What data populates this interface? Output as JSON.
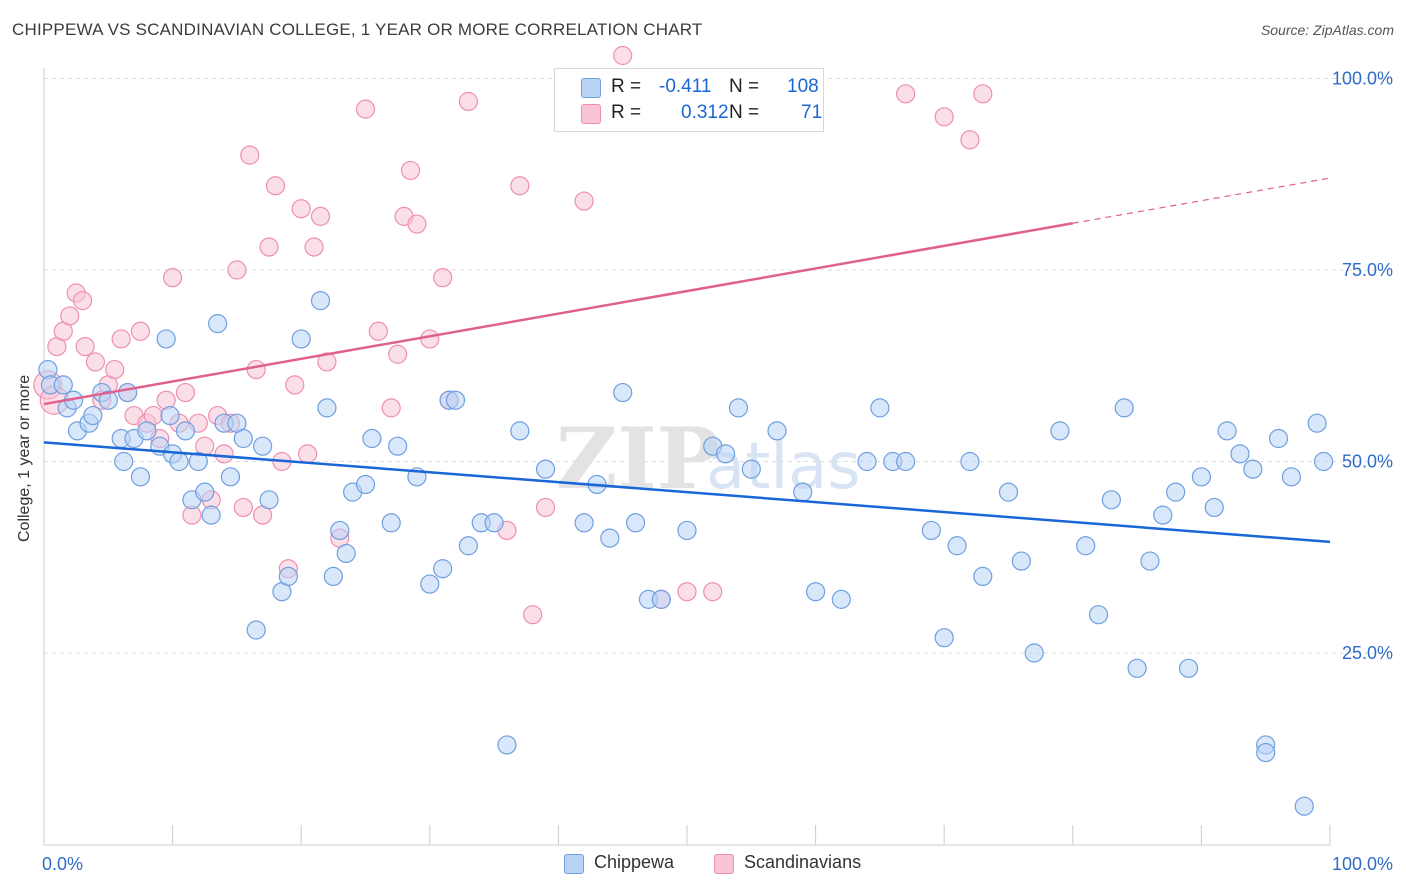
{
  "header": {
    "title": "CHIPPEWA VS SCANDINAVIAN COLLEGE, 1 YEAR OR MORE CORRELATION CHART",
    "source": "Source: ZipAtlas.com"
  },
  "legend": {
    "rows": [
      {
        "r_label": "R =",
        "r_value": "-0.411",
        "n_label": "N =",
        "n_value": "108"
      },
      {
        "r_label": "R =",
        "r_value": "0.312",
        "n_label": "N =",
        "n_value": "71"
      }
    ]
  },
  "watermark": {
    "zip": "ZIP",
    "atlas": "atlas"
  },
  "colors": {
    "blue_fill": "#b9d3f5",
    "blue_stroke": "#6f9fe0",
    "blue_line": "#1a66d6",
    "pink_fill": "#f8c4d6",
    "pink_stroke": "#ee8fb0",
    "pink_line": "#e0608d",
    "tick_label": "#2f6cc8",
    "grid": "#dddddd"
  },
  "chart_data": {
    "type": "scatter",
    "title": "CHIPPEWA VS SCANDINAVIAN COLLEGE, 1 YEAR OR MORE CORRELATION CHART",
    "xlabel": "",
    "ylabel": "College, 1 year or more",
    "xlim": [
      0,
      100
    ],
    "ylim": [
      0,
      100
    ],
    "x_tick_labels": [
      "0.0%",
      "100.0%"
    ],
    "y_ticks": [
      25,
      50,
      75,
      100
    ],
    "y_tick_labels": [
      "25.0%",
      "50.0%",
      "75.0%",
      "100.0%"
    ],
    "grid": true,
    "legend_position": "top-center",
    "series": [
      {
        "name": "Chippewa",
        "r": -0.411,
        "n": 108,
        "trend": {
          "x": [
            0,
            100
          ],
          "y": [
            52.5,
            39.5
          ],
          "dashed_from": null
        },
        "points": [
          [
            0.3,
            62
          ],
          [
            0.5,
            60
          ],
          [
            1.5,
            60
          ],
          [
            1.8,
            57
          ],
          [
            2.3,
            58
          ],
          [
            2.6,
            54
          ],
          [
            3.5,
            55
          ],
          [
            3.8,
            56
          ],
          [
            4.5,
            59
          ],
          [
            5,
            58
          ],
          [
            6,
            53
          ],
          [
            6.2,
            50
          ],
          [
            6.5,
            59
          ],
          [
            7,
            53
          ],
          [
            7.5,
            48
          ],
          [
            8,
            54
          ],
          [
            9,
            52
          ],
          [
            9.5,
            66
          ],
          [
            9.8,
            56
          ],
          [
            10,
            51
          ],
          [
            10.5,
            50
          ],
          [
            11,
            54
          ],
          [
            11.5,
            45
          ],
          [
            12,
            50
          ],
          [
            12.5,
            46
          ],
          [
            13,
            43
          ],
          [
            13.5,
            68
          ],
          [
            14,
            55
          ],
          [
            14.5,
            48
          ],
          [
            15,
            55
          ],
          [
            15.5,
            53
          ],
          [
            16.5,
            28
          ],
          [
            17,
            52
          ],
          [
            17.5,
            45
          ],
          [
            18.5,
            33
          ],
          [
            19,
            35
          ],
          [
            20,
            66
          ],
          [
            21.5,
            71
          ],
          [
            22,
            57
          ],
          [
            22.5,
            35
          ],
          [
            23,
            41
          ],
          [
            23.5,
            38
          ],
          [
            24,
            46
          ],
          [
            25,
            47
          ],
          [
            25.5,
            53
          ],
          [
            27,
            42
          ],
          [
            27.5,
            52
          ],
          [
            29,
            48
          ],
          [
            30,
            34
          ],
          [
            31,
            36
          ],
          [
            31.5,
            58
          ],
          [
            32,
            58
          ],
          [
            33,
            39
          ],
          [
            34,
            42
          ],
          [
            35,
            42
          ],
          [
            36,
            13
          ],
          [
            37,
            54
          ],
          [
            39,
            49
          ],
          [
            42,
            42
          ],
          [
            43,
            47
          ],
          [
            44,
            40
          ],
          [
            45,
            59
          ],
          [
            46,
            42
          ],
          [
            47,
            32
          ],
          [
            48,
            32
          ],
          [
            50,
            41
          ],
          [
            52,
            52
          ],
          [
            53,
            51
          ],
          [
            54,
            57
          ],
          [
            55,
            49
          ],
          [
            57,
            54
          ],
          [
            59,
            46
          ],
          [
            60,
            33
          ],
          [
            62,
            32
          ],
          [
            64,
            50
          ],
          [
            65,
            57
          ],
          [
            66,
            50
          ],
          [
            67,
            50
          ],
          [
            69,
            41
          ],
          [
            70,
            27
          ],
          [
            71,
            39
          ],
          [
            72,
            50
          ],
          [
            73,
            35
          ],
          [
            75,
            46
          ],
          [
            76,
            37
          ],
          [
            77,
            25
          ],
          [
            79,
            54
          ],
          [
            81,
            39
          ],
          [
            82,
            30
          ],
          [
            83,
            45
          ],
          [
            84,
            57
          ],
          [
            85,
            23
          ],
          [
            86,
            37
          ],
          [
            87,
            43
          ],
          [
            88,
            46
          ],
          [
            89,
            23
          ],
          [
            90,
            48
          ],
          [
            91,
            44
          ],
          [
            92,
            54
          ],
          [
            93,
            51
          ],
          [
            94,
            49
          ],
          [
            95,
            13
          ],
          [
            96,
            53
          ],
          [
            97,
            48
          ],
          [
            98,
            5
          ],
          [
            99,
            55
          ],
          [
            99.5,
            50
          ],
          [
            95,
            12
          ]
        ]
      },
      {
        "name": "Scandinavians",
        "r": 0.312,
        "n": 71,
        "trend": {
          "x": [
            0,
            100
          ],
          "y": [
            57.5,
            87
          ],
          "dashed_from": 80
        },
        "points": [
          [
            0.3,
            60
          ],
          [
            0.8,
            58
          ],
          [
            1,
            65
          ],
          [
            1.5,
            67
          ],
          [
            2,
            69
          ],
          [
            2.5,
            72
          ],
          [
            3,
            71
          ],
          [
            3.2,
            65
          ],
          [
            4,
            63
          ],
          [
            4.5,
            58
          ],
          [
            5,
            60
          ],
          [
            5.5,
            62
          ],
          [
            6,
            66
          ],
          [
            6.5,
            59
          ],
          [
            7,
            56
          ],
          [
            7.5,
            67
          ],
          [
            8,
            55
          ],
          [
            8.5,
            56
          ],
          [
            9,
            53
          ],
          [
            9.5,
            58
          ],
          [
            10,
            74
          ],
          [
            10.5,
            55
          ],
          [
            11,
            59
          ],
          [
            11.5,
            43
          ],
          [
            12,
            55
          ],
          [
            12.5,
            52
          ],
          [
            13,
            45
          ],
          [
            13.5,
            56
          ],
          [
            14,
            51
          ],
          [
            14.5,
            55
          ],
          [
            15,
            75
          ],
          [
            15.5,
            44
          ],
          [
            16,
            90
          ],
          [
            16.5,
            62
          ],
          [
            17,
            43
          ],
          [
            17.5,
            78
          ],
          [
            18,
            86
          ],
          [
            18.5,
            50
          ],
          [
            19,
            36
          ],
          [
            19.5,
            60
          ],
          [
            20,
            83
          ],
          [
            20.5,
            51
          ],
          [
            21,
            78
          ],
          [
            21.5,
            82
          ],
          [
            22,
            63
          ],
          [
            23,
            40
          ],
          [
            25,
            96
          ],
          [
            26,
            67
          ],
          [
            27,
            57
          ],
          [
            27.5,
            64
          ],
          [
            28,
            82
          ],
          [
            28.5,
            88
          ],
          [
            29,
            81
          ],
          [
            30,
            66
          ],
          [
            31,
            74
          ],
          [
            31.5,
            58
          ],
          [
            33,
            97
          ],
          [
            36,
            41
          ],
          [
            37,
            86
          ],
          [
            38,
            30
          ],
          [
            39,
            44
          ],
          [
            42,
            84
          ],
          [
            45,
            103
          ],
          [
            46,
            95
          ],
          [
            48,
            32
          ],
          [
            50,
            33
          ],
          [
            52,
            33
          ],
          [
            67,
            98
          ],
          [
            70,
            95
          ],
          [
            72,
            92
          ],
          [
            73,
            98
          ]
        ]
      }
    ]
  },
  "bottom_legend": [
    {
      "label": "Chippewa"
    },
    {
      "label": "Scandinavians"
    }
  ]
}
